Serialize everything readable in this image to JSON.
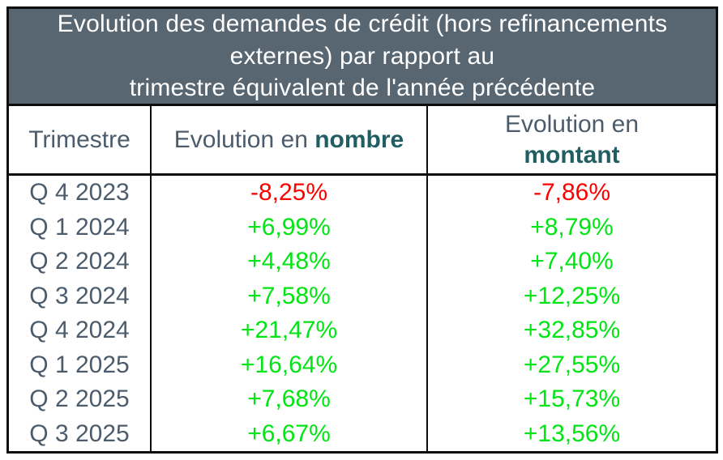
{
  "title": {
    "text": "Evolution des demandes de crédit (hors refinancements\nexternes) par rapport au\ntrimestre équivalent de l'année précédente"
  },
  "header": {
    "trimestre": "Trimestre",
    "nombre_prefix": "Evolution en ",
    "nombre_bold": "nombre",
    "montant_prefix": "Evolution en",
    "montant_bold": "montant"
  },
  "rows": [
    {
      "trimestre": "Q 4 2023",
      "nombre": "-8,25%",
      "montant": "-7,86%",
      "trend": "negative"
    },
    {
      "trimestre": "Q 1 2024",
      "nombre": "+6,99%",
      "montant": "+8,79%",
      "trend": "positive"
    },
    {
      "trimestre": "Q 2 2024",
      "nombre": "+4,48%",
      "montant": "+7,40%",
      "trend": "positive"
    },
    {
      "trimestre": "Q 3 2024",
      "nombre": "+7,58%",
      "montant": "+12,25%",
      "trend": "positive"
    },
    {
      "trimestre": "Q 4 2024",
      "nombre": "+21,47%",
      "montant": "+32,85%",
      "trend": "positive"
    },
    {
      "trimestre": "Q 1 2025",
      "nombre": "+16,64%",
      "montant": "+27,55%",
      "trend": "positive"
    },
    {
      "trimestre": "Q 2 2025",
      "nombre": "+7,68%",
      "montant": "+15,73%",
      "trend": "positive"
    },
    {
      "trimestre": "Q 3 2025",
      "nombre": "+6,67%",
      "montant": "+13,56%",
      "trend": "positive"
    }
  ],
  "colors": {
    "title_bg": "#586672",
    "title_text": "#ffffff",
    "header_text": "#4c5c6c",
    "accent_teal": "#205e63",
    "positive": "#00e513",
    "negative": "#fe0000",
    "row_label": "#4c5c6c",
    "border": "#0d0d0d"
  },
  "chart_data": {
    "type": "table",
    "title": "Evolution des demandes de crédit (hors refinancements externes) par rapport au trimestre équivalent de l'année précédente",
    "columns": [
      "Trimestre",
      "Evolution en nombre",
      "Evolution en montant"
    ],
    "rows": [
      [
        "Q 4 2023",
        "-8,25%",
        "-7,86%"
      ],
      [
        "Q 1 2024",
        "+6,99%",
        "+8,79%"
      ],
      [
        "Q 2 2024",
        "+4,48%",
        "+7,40%"
      ],
      [
        "Q 3 2024",
        "+7,58%",
        "+12,25%"
      ],
      [
        "Q 4 2024",
        "+21,47%",
        "+32,85%"
      ],
      [
        "Q 1 2025",
        "+16,64%",
        "+27,55%"
      ],
      [
        "Q 2 2025",
        "+7,68%",
        "+15,73%"
      ],
      [
        "Q 3 2025",
        "+6,67%",
        "+13,56%"
      ]
    ],
    "categories": [
      "Q4 2023",
      "Q1 2024",
      "Q2 2024",
      "Q3 2024",
      "Q4 2024",
      "Q1 2025",
      "Q2 2025",
      "Q3 2025"
    ],
    "series": [
      {
        "name": "Evolution en nombre",
        "values": [
          -8.25,
          6.99,
          4.48,
          7.58,
          21.47,
          16.64,
          7.68,
          6.67
        ]
      },
      {
        "name": "Evolution en montant",
        "values": [
          -7.86,
          8.79,
          7.4,
          12.25,
          32.85,
          27.55,
          15.73,
          13.56
        ]
      }
    ],
    "value_format": "percent, French comma decimals, signed",
    "color_coding": {
      "negative": "red",
      "positive": "bright-green"
    }
  }
}
